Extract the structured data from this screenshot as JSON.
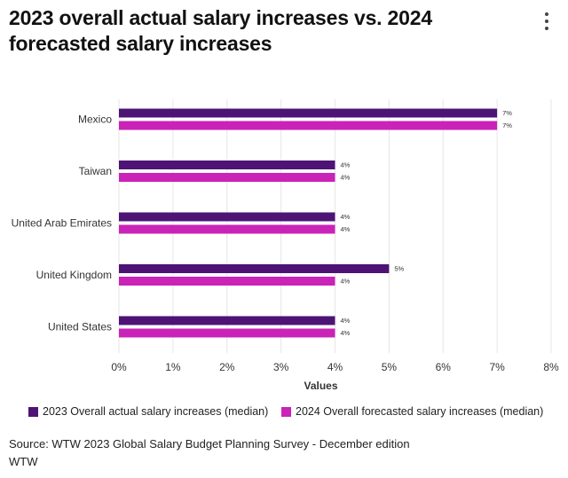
{
  "header": {
    "title": "2023 overall actual salary increases vs. 2024 forecasted salary increases"
  },
  "colors": {
    "series_2023": "#4d1476",
    "series_2024": "#c923b8",
    "grid": "#e6e6e6",
    "axis_text": "#333333"
  },
  "chart_data": {
    "type": "bar",
    "orientation": "horizontal",
    "title": "2023 overall actual salary increases vs. 2024 forecasted salary increases",
    "categories": [
      "Mexico",
      "Taiwan",
      "United Arab Emirates",
      "United Kingdom",
      "United States"
    ],
    "series": [
      {
        "name": "2023 Overall actual salary increases (median)",
        "values": [
          7,
          4,
          4,
          5,
          4
        ],
        "labels": [
          "7%",
          "4%",
          "4%",
          "5%",
          "4%"
        ]
      },
      {
        "name": "2024 Overall forecasted salary increases (median)",
        "values": [
          7,
          4,
          4,
          4,
          4
        ],
        "labels": [
          "7%",
          "4%",
          "4%",
          "4%",
          "4%"
        ]
      }
    ],
    "xlabel": "Values",
    "ylabel": "",
    "xlim": [
      0,
      8
    ],
    "xticks": [
      "0%",
      "1%",
      "2%",
      "3%",
      "4%",
      "5%",
      "6%",
      "7%",
      "8%"
    ],
    "grid": true,
    "legend_position": "bottom"
  },
  "footer": {
    "source": "Source: WTW 2023 Global Salary Budget Planning Survey - December edition",
    "credit": "WTW"
  }
}
